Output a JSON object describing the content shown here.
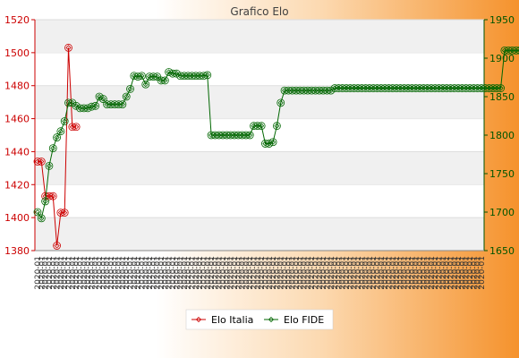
{
  "chart_data": {
    "type": "line",
    "title": "Grafico Elo",
    "colors": {
      "elo_italia": "#cc0000",
      "elo_fide": "#006600",
      "axis_left": "#cc0000",
      "axis_right": "#005500",
      "band": "#f0f0f0",
      "grid": "#dddddd"
    },
    "y_left": {
      "min": 1380,
      "max": 1520,
      "ticks": [
        1380,
        1400,
        1420,
        1440,
        1460,
        1480,
        1500,
        1520
      ]
    },
    "y_right": {
      "min": 1650,
      "max": 1950,
      "ticks": [
        1650,
        1700,
        1750,
        1800,
        1850,
        1900,
        1950
      ]
    },
    "x_count": 116,
    "x_tick_label": "2020-01",
    "grid": true,
    "legend": {
      "position": "bottom",
      "items": [
        {
          "name": "Elo Italia",
          "color": "#cc0000",
          "marker": "diamond"
        },
        {
          "name": "Elo FIDE",
          "color": "#006600",
          "marker": "diamond"
        }
      ]
    },
    "series": [
      {
        "name": "Elo Italia",
        "axis": "left",
        "values": [
          1434,
          1434,
          1413,
          1413,
          1413,
          1383,
          1403,
          1403,
          1503,
          1455,
          1455
        ]
      },
      {
        "name": "Elo FIDE",
        "axis": "right",
        "values": [
          1700,
          1692,
          1714,
          1760,
          1783,
          1797,
          1805,
          1818,
          1842,
          1842,
          1838,
          1835,
          1835,
          1835,
          1837,
          1838,
          1850,
          1847,
          1840,
          1840,
          1840,
          1840,
          1840,
          1850,
          1860,
          1877,
          1876,
          1877,
          1866,
          1876,
          1876,
          1876,
          1871,
          1871,
          1882,
          1880,
          1880,
          1877,
          1877,
          1877,
          1877,
          1877,
          1877,
          1877,
          1878,
          1800,
          1800,
          1800,
          1800,
          1800,
          1800,
          1800,
          1800,
          1800,
          1800,
          1800,
          1812,
          1812,
          1812,
          1789,
          1789,
          1791,
          1812,
          1842,
          1858,
          1858,
          1858,
          1858,
          1858,
          1858,
          1858,
          1858,
          1858,
          1858,
          1858,
          1858,
          1858,
          1861,
          1861,
          1861,
          1861,
          1861,
          1861,
          1861,
          1861,
          1861,
          1861,
          1861,
          1861,
          1861,
          1861,
          1861,
          1861,
          1861,
          1861,
          1861,
          1861,
          1861,
          1861,
          1861,
          1861,
          1861,
          1861,
          1861,
          1861,
          1861,
          1861,
          1861,
          1861,
          1861,
          1861,
          1861,
          1861,
          1861,
          1861,
          1861,
          1861,
          1861,
          1861,
          1861,
          1861,
          1910,
          1910,
          1910,
          1910,
          1910,
          1910,
          1910,
          1910,
          1910,
          1910,
          1910,
          1910,
          1910
        ]
      }
    ]
  }
}
